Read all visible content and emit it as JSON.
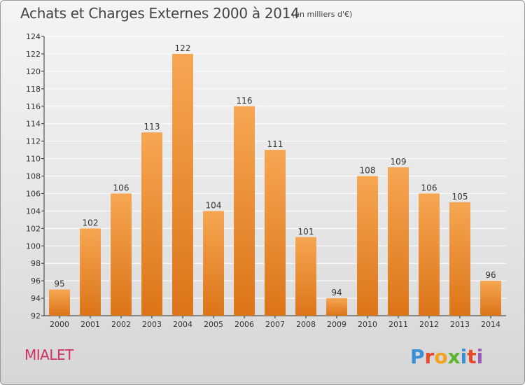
{
  "title": "Achats et Charges Externes 2000 à 2014",
  "unit": "(en milliers d'€)",
  "commune": "MIALET",
  "logo_text": "Proxiti",
  "colors": {
    "bar_light": "#f6a652",
    "bar_dark": "#dc7418",
    "title": "#444444",
    "commune": "#d1315e",
    "axis": "#333333",
    "grid": "#ffffff"
  },
  "chart_data": {
    "type": "bar",
    "categories": [
      "2000",
      "2001",
      "2002",
      "2003",
      "2004",
      "2005",
      "2006",
      "2007",
      "2008",
      "2009",
      "2010",
      "2011",
      "2012",
      "2013",
      "2014"
    ],
    "values": [
      95,
      102,
      106,
      113,
      122,
      104,
      116,
      111,
      101,
      94,
      108,
      109,
      106,
      105,
      96
    ],
    "data_labels": [
      "95",
      "102",
      "106",
      "113",
      "122",
      "104",
      "116",
      "111",
      "101",
      "94",
      "108",
      "109",
      "106",
      "105",
      "96"
    ],
    "ylim": [
      92,
      124
    ],
    "yticks": [
      92,
      94,
      96,
      98,
      100,
      102,
      104,
      106,
      108,
      110,
      112,
      114,
      116,
      118,
      120,
      122,
      124
    ],
    "grid": true,
    "xlabel": "",
    "ylabel": ""
  }
}
